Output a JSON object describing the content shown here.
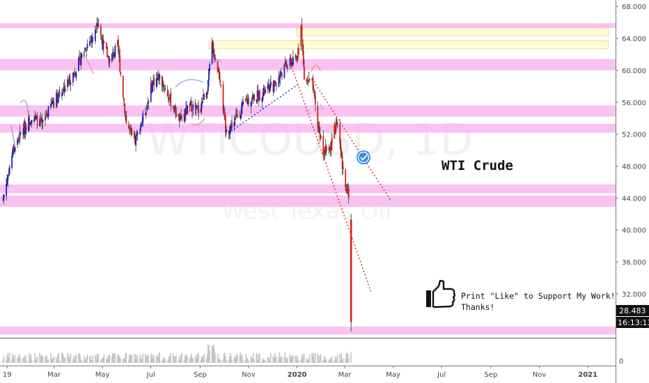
{
  "chart_data": {
    "type": "candlestick",
    "symbol_watermark": "WTICOUSD, 1D",
    "name_watermark": "West Texas Oil",
    "annotation_title": "WTI Crude",
    "annotation_note_line1": "Print \"Like\" to Support My Work!",
    "annotation_note_line2": "Thanks!",
    "price_labels": [
      "68.000",
      "64.000",
      "60.000",
      "56.000",
      "52.000",
      "48.000",
      "44.000",
      "40.000",
      "36.000",
      "32.000"
    ],
    "price_ticks": [
      68,
      64,
      60,
      56,
      52,
      48,
      44,
      40,
      36,
      32
    ],
    "volume_tick": "0",
    "last_price": "28.483",
    "countdown": "16:13:13",
    "ylim": [
      26.5,
      68.8
    ],
    "time_labels": [
      {
        "label": "19",
        "date": "2019-01-01"
      },
      {
        "label": "Mar",
        "date": "2019-03-01"
      },
      {
        "label": "May",
        "date": "2019-05-01"
      },
      {
        "label": "Jul",
        "date": "2019-07-01"
      },
      {
        "label": "Sep",
        "date": "2019-09-01"
      },
      {
        "label": "Nov",
        "date": "2019-11-01"
      },
      {
        "label": "2020",
        "date": "2020-01-01"
      },
      {
        "label": "Mar",
        "date": "2020-03-01"
      },
      {
        "label": "May",
        "date": "2020-05-01"
      },
      {
        "label": "Jul",
        "date": "2020-07-01"
      },
      {
        "label": "Sep",
        "date": "2020-09-01"
      },
      {
        "label": "Nov",
        "date": "2020-11-01"
      },
      {
        "label": "2021",
        "date": "2021-01-01"
      }
    ],
    "support_resistance_zones": [
      {
        "top": 65.9,
        "bottom": 65.3
      },
      {
        "top": 61.4,
        "bottom": 60.0
      },
      {
        "top": 55.6,
        "bottom": 54.2
      },
      {
        "top": 53.3,
        "bottom": 52.2
      },
      {
        "top": 45.7,
        "bottom": 44.6
      },
      {
        "top": 44.3,
        "bottom": 42.9
      },
      {
        "top": 27.9,
        "bottom": 26.9
      }
    ],
    "yellow_zones": [
      {
        "top": 65.3,
        "bottom": 64.3,
        "from": "2019-12-31",
        "to": "2021-01-27"
      },
      {
        "top": 63.7,
        "bottom": 62.7,
        "from": "2019-09-12",
        "to": "2021-01-27"
      }
    ],
    "dotted_lines": [
      {
        "color": "#1f3bd6",
        "points": [
          [
            "2019-10-03",
            51.9
          ],
          [
            "2020-01-02",
            58.2
          ]
        ]
      },
      {
        "color": "#e0302a",
        "points": [
          [
            "2019-12-24",
            60.8
          ],
          [
            "2020-04-03",
            32.3
          ]
        ]
      },
      {
        "color": "#e0302a",
        "points": [
          [
            "2020-01-22",
            58.6
          ],
          [
            "2020-04-28",
            43.7
          ]
        ]
      }
    ],
    "price_path": [
      [
        "2018-12-27",
        44.0
      ],
      [
        "2019-01-08",
        49.8
      ],
      [
        "2019-01-20",
        52.4
      ],
      [
        "2019-02-01",
        54.3
      ],
      [
        "2019-02-14",
        53.1
      ],
      [
        "2019-02-28",
        56.2
      ],
      [
        "2019-03-14",
        57.8
      ],
      [
        "2019-03-28",
        60.0
      ],
      [
        "2019-04-10",
        63.0
      ],
      [
        "2019-04-20",
        64.2
      ],
      [
        "2019-04-24",
        66.5
      ],
      [
        "2019-05-01",
        63.4
      ],
      [
        "2019-05-10",
        61.2
      ],
      [
        "2019-05-20",
        63.0
      ],
      [
        "2019-05-31",
        53.5
      ],
      [
        "2019-06-10",
        50.8
      ],
      [
        "2019-06-24",
        54.9
      ],
      [
        "2019-07-03",
        58.5
      ],
      [
        "2019-07-12",
        59.2
      ],
      [
        "2019-07-24",
        56.5
      ],
      [
        "2019-08-07",
        53.6
      ],
      [
        "2019-08-20",
        55.6
      ],
      [
        "2019-08-30",
        55.0
      ],
      [
        "2019-09-10",
        57.8
      ],
      [
        "2019-09-16",
        63.0
      ],
      [
        "2019-09-27",
        58.5
      ],
      [
        "2019-10-03",
        52.2
      ],
      [
        "2019-10-14",
        53.6
      ],
      [
        "2019-10-28",
        56.0
      ],
      [
        "2019-11-06",
        56.6
      ],
      [
        "2019-11-20",
        57.2
      ],
      [
        "2019-12-04",
        58.2
      ],
      [
        "2019-12-18",
        60.6
      ],
      [
        "2019-12-31",
        61.2
      ],
      [
        "2020-01-03",
        63.5
      ],
      [
        "2020-01-06",
        65.6
      ],
      [
        "2020-01-10",
        59.0
      ],
      [
        "2020-01-20",
        58.3
      ],
      [
        "2020-01-27",
        53.2
      ],
      [
        "2020-02-03",
        50.0
      ],
      [
        "2020-02-10",
        49.9
      ],
      [
        "2020-02-20",
        53.6
      ],
      [
        "2020-02-28",
        47.0
      ],
      [
        "2020-03-03",
        45.5
      ],
      [
        "2020-03-06",
        44.5
      ],
      [
        "2020-03-09",
        41.3
      ],
      [
        "2020-03-09",
        28.483
      ]
    ]
  }
}
